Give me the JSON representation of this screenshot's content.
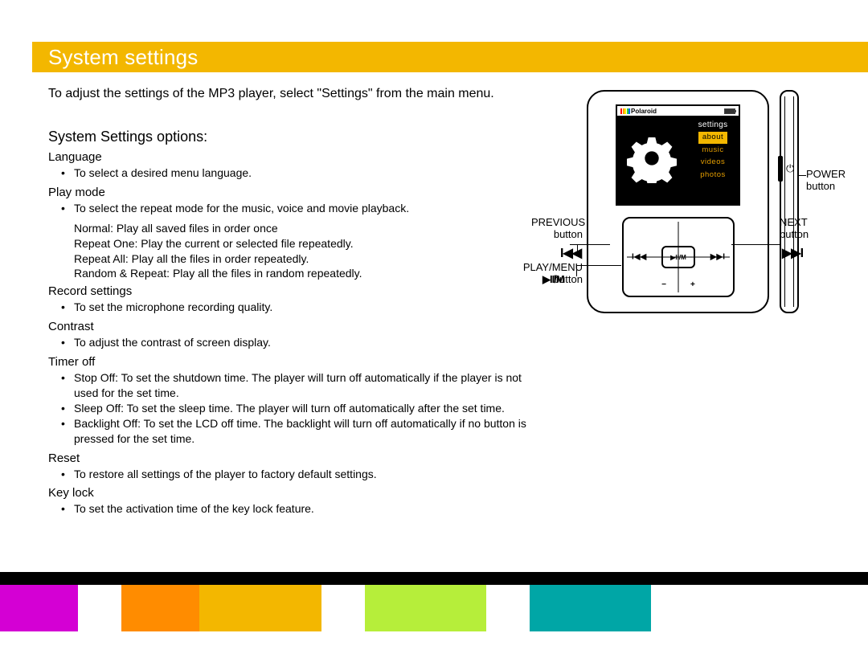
{
  "header": {
    "title": "System settings"
  },
  "intro": "To adjust the settings of the MP3 player, select  \"Settings\" from the main menu.",
  "section_title": "System Settings options:",
  "options": {
    "language": {
      "title": "Language",
      "b1": "To select a desired menu language."
    },
    "playmode": {
      "title": "Play mode",
      "b1": "To select the repeat mode for the music, voice and movie playback.",
      "i1": "Normal: Play all saved files in order once",
      "i2": "Repeat One: Play the current or selected file repeatedly.",
      "i3": "Repeat All: Play all the files in order repeatedly.",
      "i4": "Random & Repeat: Play all the files in random repeatedly."
    },
    "record": {
      "title": "Record settings",
      "b1": "To set the microphone recording quality."
    },
    "contrast": {
      "title": "Contrast",
      "b1": "To adjust the contrast of screen display."
    },
    "timer": {
      "title": "Timer off",
      "b1": "Stop Off: To set the shutdown time.  The player will turn off automatically if the player is not used for the set time.",
      "b2": "Sleep Off: To set the sleep time.  The player will turn off automatically after the set time.",
      "b3": "Backlight Off: To set the LCD off time.  The backlight will turn off automatically if no button is pressed for the set time."
    },
    "reset": {
      "title": "Reset",
      "b1": "To restore all settings of the player to factory default settings."
    },
    "keylock": {
      "title": "Key lock",
      "b1": "To set the activation time of the key lock feature."
    }
  },
  "device": {
    "brand": "Polaroid",
    "menu_title": "settings",
    "menu": {
      "m1": "about",
      "m2": "music",
      "m3": "videos",
      "m4": "photos"
    },
    "labels": {
      "prev1": "PREVIOUS",
      "prev2": "button",
      "next1": "NEXT",
      "next2": "button",
      "play1": "PLAY/MENU",
      "play2": "button",
      "power1": "POWER",
      "power2": "button"
    },
    "pad_center": "▶II/M",
    "icons": {
      "prev": "I◀◀",
      "next": "▶▶I",
      "play": "▶II/M"
    },
    "brand_stripe_colors": [
      "#ff0000",
      "#ff9900",
      "#ffee00",
      "#33cc33",
      "#0066ff"
    ]
  },
  "footer_bars": [
    {
      "color": "#d400d4",
      "width": 9
    },
    {
      "color": "#ffffff",
      "width": 5
    },
    {
      "color": "#ff8c00",
      "width": 9
    },
    {
      "color": "#f3b700",
      "width": 14
    },
    {
      "color": "#ffffff",
      "width": 5
    },
    {
      "color": "#b6ee3a",
      "width": 14
    },
    {
      "color": "#ffffff",
      "width": 5
    },
    {
      "color": "#00a6a6",
      "width": 14
    },
    {
      "color": "#ffffff",
      "width": 25
    }
  ]
}
